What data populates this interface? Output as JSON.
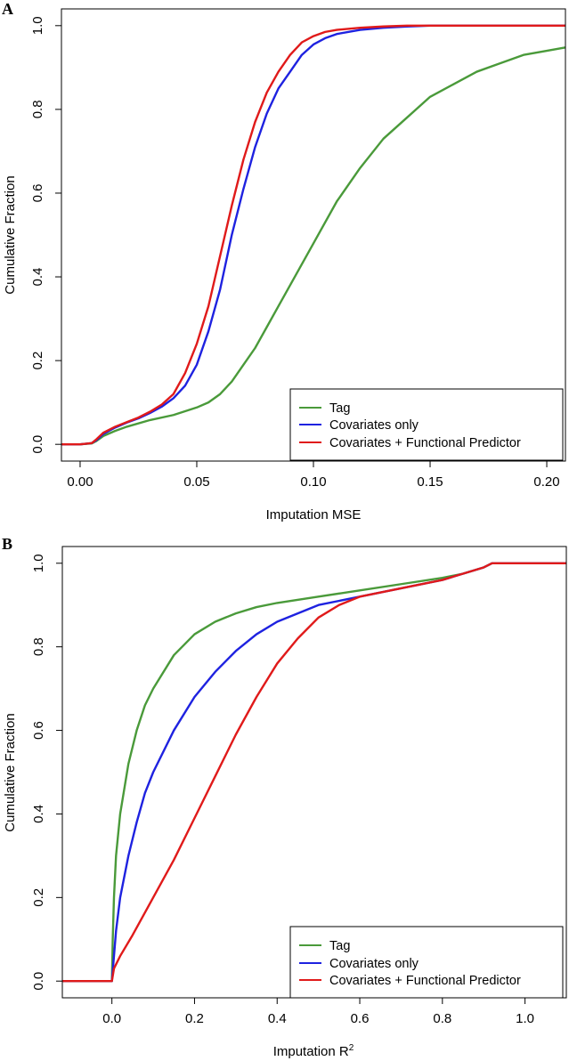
{
  "chart_data": [
    {
      "panel": "A",
      "type": "line",
      "xlabel": "Imputation MSE",
      "ylabel": "Cumulative Fraction",
      "xlim": [
        -0.008,
        0.208
      ],
      "ylim": [
        -0.04,
        1.04
      ],
      "xticks": [
        0.0,
        0.05,
        0.1,
        0.15,
        0.2
      ],
      "xtick_labels": [
        "0.00",
        "0.05",
        "0.10",
        "0.15",
        "0.20"
      ],
      "yticks": [
        0.0,
        0.2,
        0.4,
        0.6,
        0.8,
        1.0
      ],
      "ytick_labels": [
        "0.0",
        "0.2",
        "0.4",
        "0.6",
        "0.8",
        "1.0"
      ],
      "grid": false,
      "legend_position": "bottom-right",
      "series": [
        {
          "name": "Tag",
          "color": "#4a9a3a",
          "x": [
            -0.008,
            0.0,
            0.005,
            0.007,
            0.01,
            0.015,
            0.02,
            0.03,
            0.04,
            0.05,
            0.055,
            0.06,
            0.065,
            0.07,
            0.075,
            0.08,
            0.085,
            0.09,
            0.095,
            0.1,
            0.11,
            0.12,
            0.13,
            0.14,
            0.15,
            0.16,
            0.17,
            0.18,
            0.19,
            0.2,
            0.208
          ],
          "y": [
            0.0,
            0.0,
            0.002,
            0.008,
            0.02,
            0.032,
            0.042,
            0.058,
            0.07,
            0.088,
            0.1,
            0.12,
            0.15,
            0.19,
            0.23,
            0.28,
            0.33,
            0.38,
            0.43,
            0.48,
            0.58,
            0.66,
            0.73,
            0.78,
            0.83,
            0.86,
            0.89,
            0.91,
            0.93,
            0.94,
            0.948
          ]
        },
        {
          "name": "Covariates only",
          "color": "#1e22e0",
          "x": [
            -0.008,
            0.0,
            0.005,
            0.007,
            0.01,
            0.015,
            0.02,
            0.025,
            0.03,
            0.035,
            0.04,
            0.045,
            0.05,
            0.055,
            0.06,
            0.065,
            0.07,
            0.075,
            0.08,
            0.085,
            0.09,
            0.095,
            0.1,
            0.105,
            0.11,
            0.12,
            0.13,
            0.14,
            0.15,
            0.16,
            0.208
          ],
          "y": [
            0.0,
            0.0,
            0.003,
            0.01,
            0.025,
            0.04,
            0.052,
            0.062,
            0.075,
            0.09,
            0.11,
            0.14,
            0.19,
            0.27,
            0.37,
            0.5,
            0.61,
            0.71,
            0.79,
            0.85,
            0.89,
            0.93,
            0.955,
            0.97,
            0.98,
            0.99,
            0.995,
            0.998,
            1.0,
            1.0,
            1.0
          ]
        },
        {
          "name": "Covariates + Functional Predictor",
          "color": "#e01a1a",
          "x": [
            -0.008,
            0.0,
            0.005,
            0.007,
            0.01,
            0.015,
            0.02,
            0.025,
            0.03,
            0.035,
            0.04,
            0.045,
            0.05,
            0.055,
            0.06,
            0.065,
            0.07,
            0.075,
            0.08,
            0.085,
            0.09,
            0.095,
            0.1,
            0.105,
            0.11,
            0.12,
            0.13,
            0.14,
            0.15,
            0.208
          ],
          "y": [
            0.0,
            0.0,
            0.003,
            0.012,
            0.028,
            0.042,
            0.053,
            0.064,
            0.078,
            0.095,
            0.12,
            0.17,
            0.24,
            0.33,
            0.45,
            0.57,
            0.68,
            0.77,
            0.84,
            0.89,
            0.93,
            0.96,
            0.975,
            0.985,
            0.99,
            0.995,
            0.998,
            1.0,
            1.0,
            1.0
          ]
        }
      ]
    },
    {
      "panel": "B",
      "type": "line",
      "xlabel": "Imputation R",
      "xlabel_superscript": "2",
      "ylabel": "Cumulative Fraction",
      "xlim": [
        -0.12,
        1.1
      ],
      "ylim": [
        -0.04,
        1.04
      ],
      "xticks": [
        0.0,
        0.2,
        0.4,
        0.6,
        0.8,
        1.0
      ],
      "xtick_labels": [
        "0.0",
        "0.2",
        "0.4",
        "0.6",
        "0.8",
        "1.0"
      ],
      "yticks": [
        0.0,
        0.2,
        0.4,
        0.6,
        0.8,
        1.0
      ],
      "ytick_labels": [
        "0.0",
        "0.2",
        "0.4",
        "0.6",
        "0.8",
        "1.0"
      ],
      "grid": false,
      "legend_position": "bottom-right",
      "series": [
        {
          "name": "Tag",
          "color": "#4a9a3a",
          "x": [
            -0.12,
            0.0,
            0.002,
            0.005,
            0.01,
            0.02,
            0.04,
            0.06,
            0.08,
            0.1,
            0.15,
            0.2,
            0.25,
            0.3,
            0.35,
            0.4,
            0.5,
            0.6,
            0.7,
            0.8,
            0.85,
            0.9,
            0.92,
            1.0,
            1.1
          ],
          "y": [
            0.0,
            0.0,
            0.1,
            0.2,
            0.3,
            0.4,
            0.52,
            0.6,
            0.66,
            0.7,
            0.78,
            0.83,
            0.86,
            0.88,
            0.895,
            0.905,
            0.92,
            0.935,
            0.95,
            0.965,
            0.975,
            0.99,
            1.0,
            1.0,
            1.0
          ]
        },
        {
          "name": "Covariates only",
          "color": "#1e22e0",
          "x": [
            -0.12,
            0.0,
            0.005,
            0.01,
            0.02,
            0.04,
            0.06,
            0.08,
            0.1,
            0.15,
            0.2,
            0.25,
            0.3,
            0.35,
            0.4,
            0.45,
            0.5,
            0.6,
            0.7,
            0.8,
            0.85,
            0.9,
            0.92,
            1.0,
            1.1
          ],
          "y": [
            0.0,
            0.0,
            0.06,
            0.12,
            0.2,
            0.3,
            0.38,
            0.45,
            0.5,
            0.6,
            0.68,
            0.74,
            0.79,
            0.83,
            0.86,
            0.88,
            0.9,
            0.92,
            0.94,
            0.96,
            0.975,
            0.99,
            1.0,
            1.0,
            1.0
          ]
        },
        {
          "name": "Covariates + Functional Predictor",
          "color": "#e01a1a",
          "x": [
            -0.12,
            0.0,
            0.005,
            0.02,
            0.05,
            0.1,
            0.15,
            0.2,
            0.25,
            0.3,
            0.35,
            0.4,
            0.45,
            0.5,
            0.55,
            0.6,
            0.7,
            0.8,
            0.85,
            0.9,
            0.92,
            1.0,
            1.1
          ],
          "y": [
            0.0,
            0.0,
            0.03,
            0.06,
            0.11,
            0.2,
            0.29,
            0.39,
            0.49,
            0.59,
            0.68,
            0.76,
            0.82,
            0.87,
            0.9,
            0.92,
            0.94,
            0.96,
            0.975,
            0.99,
            1.0,
            1.0,
            1.0
          ]
        }
      ]
    }
  ]
}
